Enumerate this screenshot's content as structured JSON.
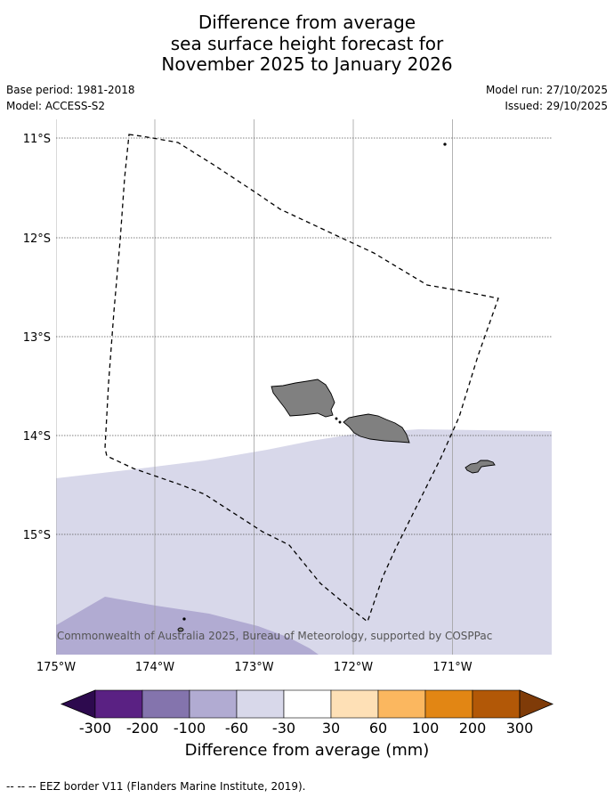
{
  "title_lines": [
    "Difference from average",
    "sea surface height forecast for",
    "November 2025 to January 2026"
  ],
  "meta": {
    "base_period": "Base period: 1981-2018",
    "model": "Model: ACCESS-S2",
    "model_run": "Model run: 27/10/2025",
    "issued": "Issued: 29/10/2025"
  },
  "map": {
    "lat_ticks": [
      "11°S",
      "12°S",
      "13°S",
      "14°S",
      "15°S"
    ],
    "lon_ticks": [
      "175°W",
      "174°W",
      "173°W",
      "172°W",
      "171°W"
    ],
    "copyright": "© Commonwealth of Australia 2025, Bureau of Meteorology, supported by COSPPac",
    "ocean_default_color": "#ffffff",
    "anomaly_band_color": "#d8d8ea",
    "deep_anomaly_color": "#b1abd2",
    "land_color": "#808080"
  },
  "colorbar": {
    "labels": [
      "-300",
      "-200",
      "-100",
      "-60",
      "-30",
      "30",
      "60",
      "100",
      "200",
      "300"
    ],
    "colors": [
      "#2d0a4e",
      "#5a2183",
      "#8474ad",
      "#b1abd2",
      "#d8d8ea",
      "#ffffff",
      "#fee0b6",
      "#fbb75f",
      "#e28614",
      "#b25807",
      "#7f3b08"
    ],
    "title": "Difference from average (mm)"
  },
  "footer": "--  --  -- EEZ border V11 (Flanders Marine Institute, 2019)."
}
